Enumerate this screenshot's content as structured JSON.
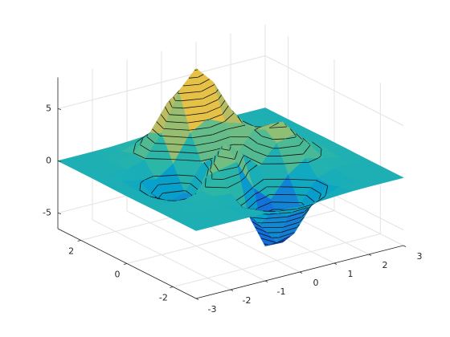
{
  "chart_data": {
    "type": "surface",
    "x": [
      -3,
      -2.5,
      -2,
      -1.5,
      -1,
      -0.5,
      0,
      0.5,
      1,
      1.5,
      2,
      2.5,
      3
    ],
    "y": [
      -3,
      -2.5,
      -2,
      -1.5,
      -1,
      -0.5,
      0,
      0.5,
      1,
      1.5,
      2,
      2.5,
      3
    ],
    "z": [
      [
        0,
        0,
        0,
        0,
        -0.03,
        -0.14,
        -0.24,
        -0.22,
        -0.11,
        -0.03,
        0,
        0,
        0
      ],
      [
        0,
        0,
        0.01,
        0,
        -0.23,
        -0.91,
        -1.57,
        -1.41,
        -0.69,
        -0.18,
        -0.03,
        0,
        0
      ],
      [
        0,
        0.01,
        0.05,
        0.05,
        -0.59,
        -2.64,
        -4.75,
        -4.34,
        -2.1,
        -0.53,
        -0.06,
        0,
        0
      ],
      [
        0,
        0.01,
        0.08,
        0.33,
        0.15,
        -2.19,
        -5.68,
        -5.76,
        -2.64,
        -0.44,
        0.04,
        0.03,
        0
      ],
      [
        -0.01,
        -0.06,
        -0.13,
        0.3,
        1.86,
        2.22,
        -0.72,
        -2.22,
        -0.27,
        0.88,
        0.5,
        0.11,
        0.01
      ],
      [
        -0.03,
        -0.2,
        -0.8,
        -1.21,
        0.8,
        3.55,
        2,
        0.39,
        2.2,
        2.61,
        1.12,
        0.24,
        0.03
      ],
      [
        -0.04,
        -0.3,
        -1.33,
        -2.77,
        -1.65,
        1.48,
        0.98,
        0.37,
        2.94,
        3.27,
        1.41,
        0.3,
        0.03
      ],
      [
        -0.03,
        -0.25,
        -1.12,
        -2.49,
        -2,
        0.39,
        0.46,
        0.38,
        2.38,
        2.51,
        1.09,
        0.23,
        0.03
      ],
      [
        -0.01,
        -0.11,
        -0.48,
        -0.86,
        0.23,
        2.79,
        3.69,
        2.93,
        2.43,
        1.58,
        0.58,
        0.11,
        0.01
      ],
      [
        0,
        -0.02,
        -0.01,
        0.48,
        2.61,
        6.2,
        8,
        6.25,
        3.25,
        1.19,
        0.29,
        0.05,
        0
      ],
      [
        0,
        0.01,
        0.08,
        0.55,
        2.09,
        4.55,
        5.85,
        4.56,
        2.21,
        0.68,
        0.13,
        0.02,
        0
      ],
      [
        0,
        0,
        0.03,
        0.19,
        0.69,
        1.47,
        1.88,
        1.47,
        0.7,
        0.2,
        0.04,
        0,
        0
      ],
      [
        0,
        0,
        0.01,
        0.03,
        0.11,
        0.23,
        0.3,
        0.23,
        0.11,
        0.03,
        0.01,
        0,
        0
      ]
    ],
    "xlim": [
      -3,
      3
    ],
    "ylim": [
      -3,
      3
    ],
    "zlim": [
      -6.5,
      8
    ],
    "xticks": [
      -3,
      -2,
      -1,
      0,
      1,
      2,
      3
    ],
    "yticks": [
      -2,
      0,
      2
    ],
    "zticks": [
      -5,
      0,
      5
    ],
    "grid": true,
    "contours": true,
    "colormap": [
      "#352a87",
      "#0f5cdd",
      "#1481d6",
      "#06a4ca",
      "#2eb7a4",
      "#87bf77",
      "#d1bb59",
      "#fec832",
      "#f9fb0e"
    ]
  }
}
